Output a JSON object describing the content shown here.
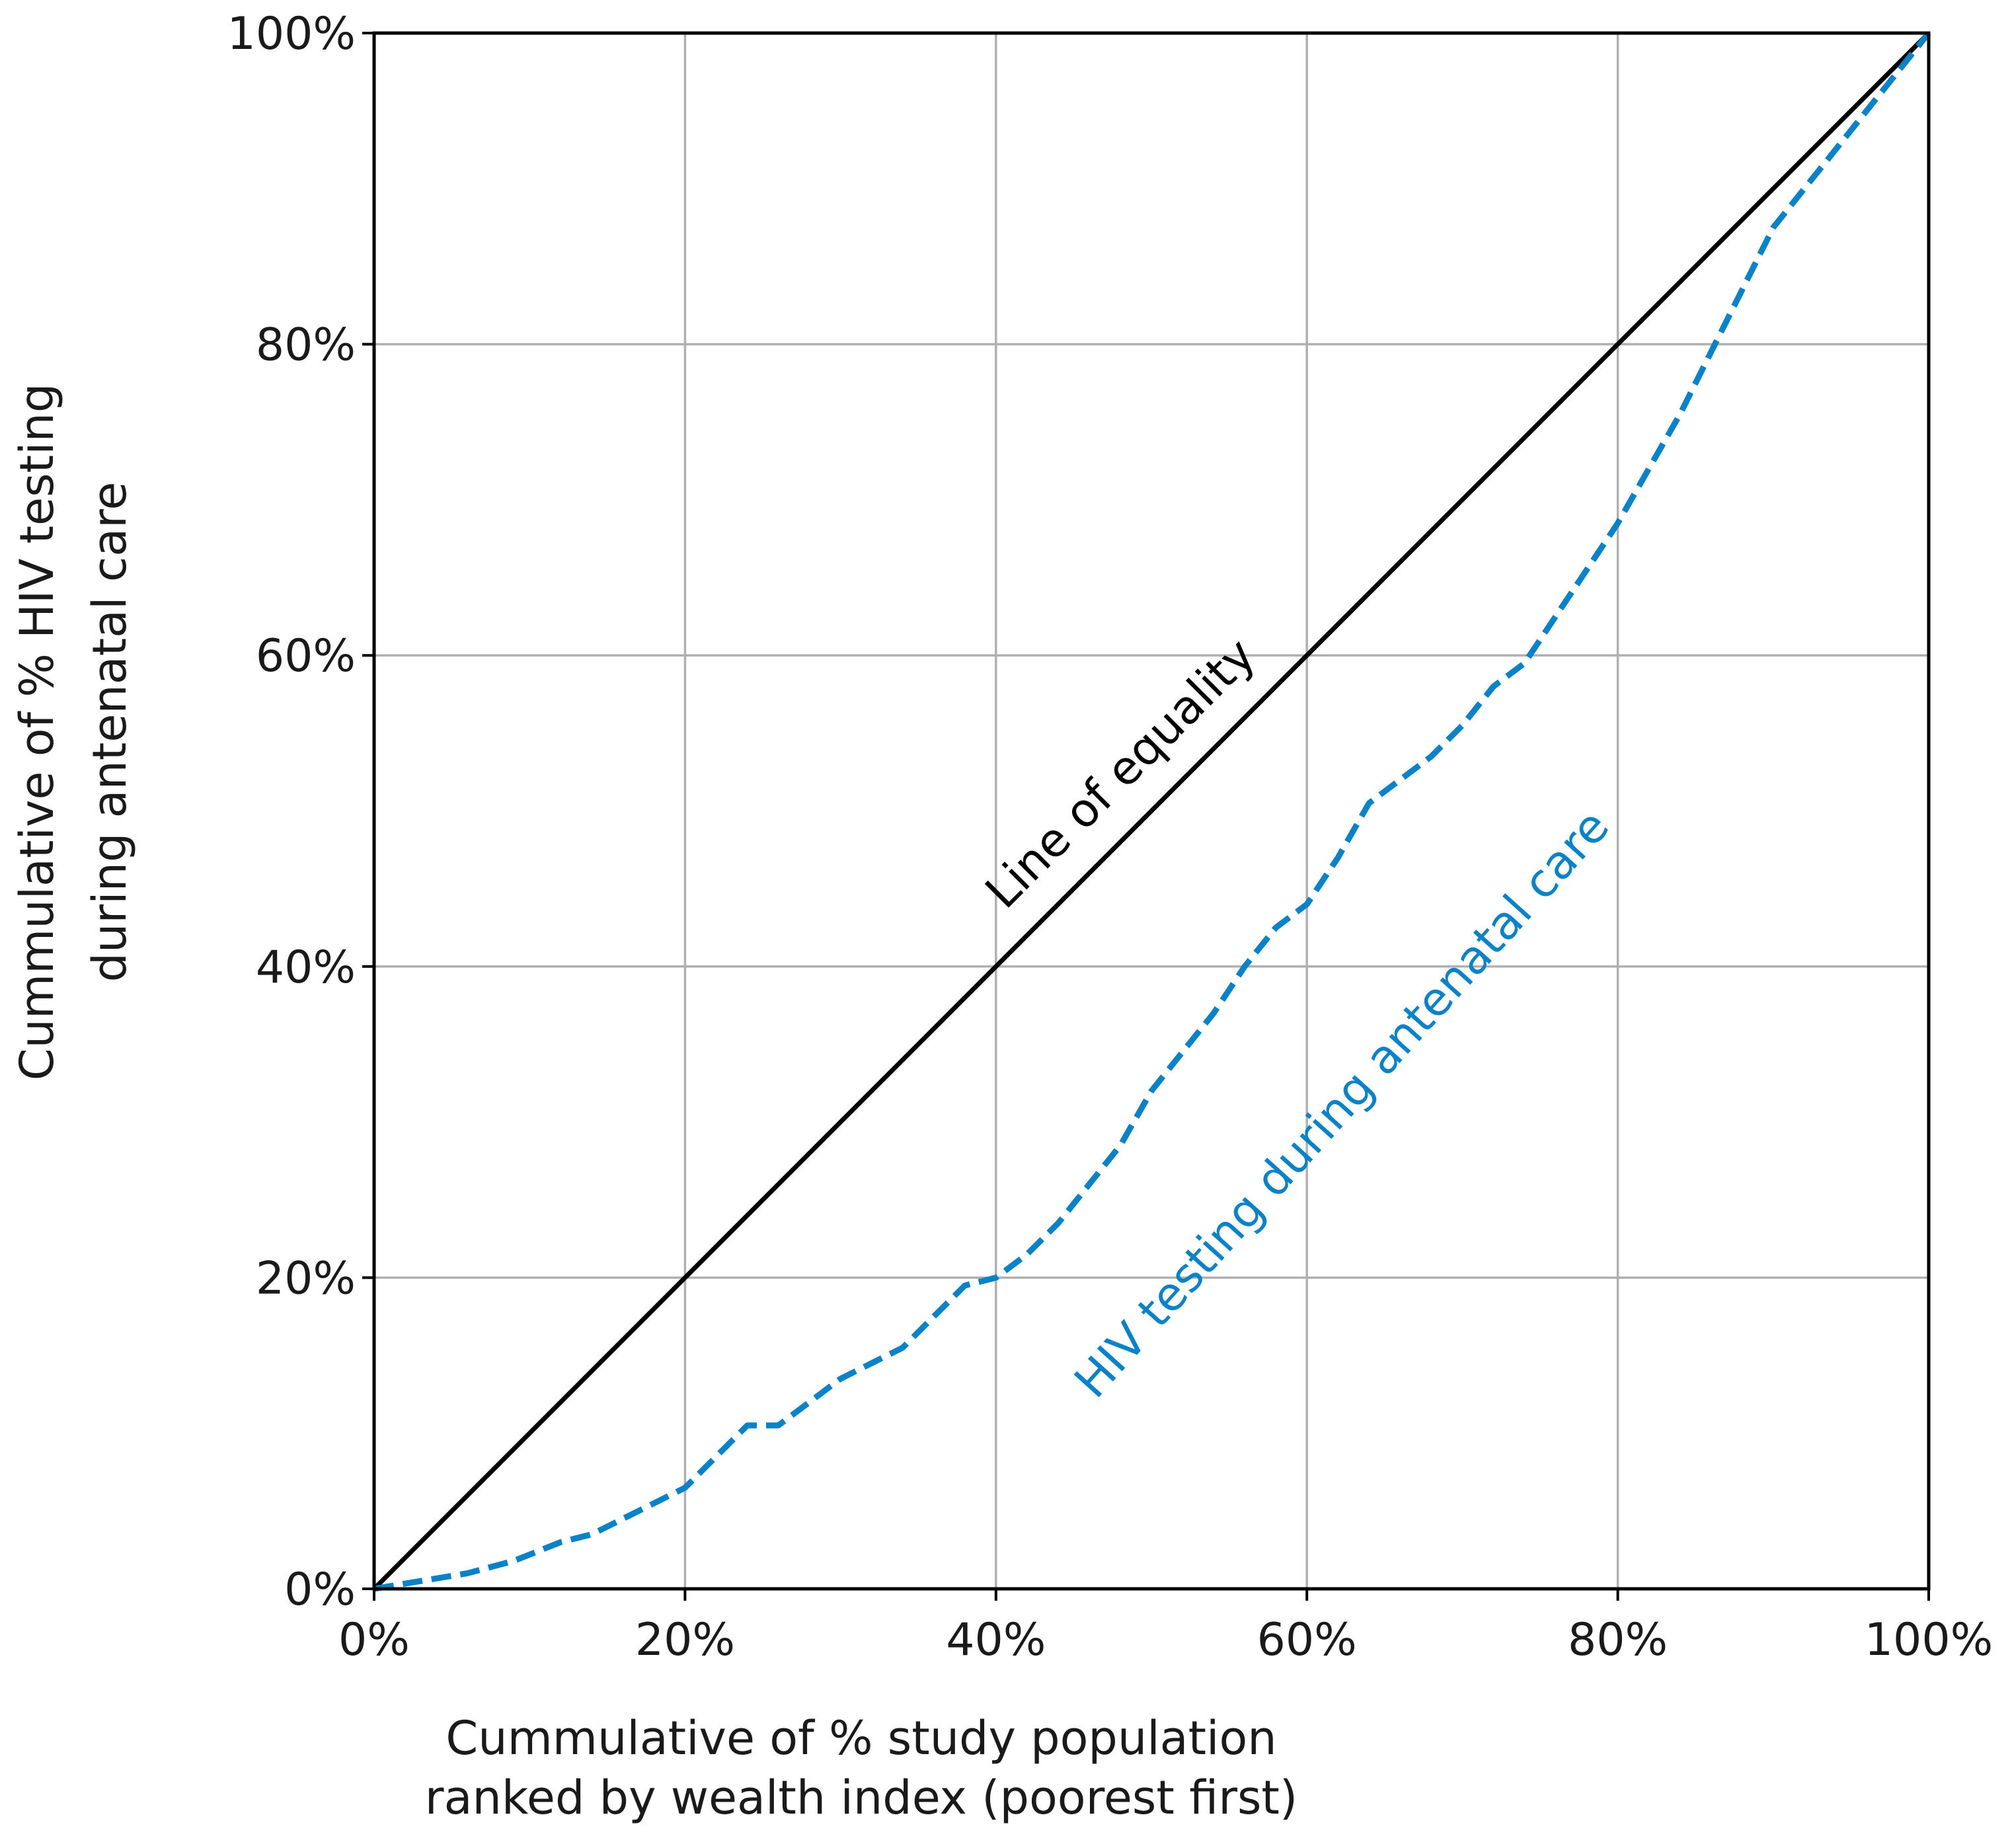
{
  "chart_data": {
    "type": "line",
    "title": "",
    "xlabel": [
      "Cummulative of % study population",
      "ranked by wealth index (poorest first)"
    ],
    "ylabel": [
      "Cummulative of % HIV testing",
      "during antenatal care"
    ],
    "xlim": [
      0,
      100
    ],
    "ylim": [
      0,
      100
    ],
    "x_ticks": [
      0,
      20,
      40,
      60,
      80,
      100
    ],
    "y_ticks": [
      0,
      20,
      40,
      60,
      80,
      100
    ],
    "x_tick_labels": [
      "0%",
      "20%",
      "40%",
      "60%",
      "80%",
      "100%"
    ],
    "y_tick_labels": [
      "0%",
      "20%",
      "40%",
      "60%",
      "80%",
      "100%"
    ],
    "grid": true,
    "colors": {
      "equality": "#000000",
      "curve": "#0a82c8",
      "grid": "#b0b0b0"
    },
    "series": [
      {
        "name": "Line of equality",
        "style": "solid",
        "x": [
          0,
          100
        ],
        "y": [
          0,
          100
        ]
      },
      {
        "name": "HIV testing during antenatal care",
        "style": "dashed",
        "x": [
          0,
          3,
          6,
          9,
          12,
          14,
          16,
          18,
          20,
          22,
          24,
          26,
          28,
          30,
          32,
          34,
          36,
          38,
          40,
          42,
          44,
          46,
          48,
          50,
          52,
          54,
          56,
          58,
          60,
          62,
          64,
          66,
          68,
          70,
          72,
          74,
          76,
          78,
          80,
          82,
          84,
          86,
          88,
          90,
          92,
          94,
          96,
          98,
          100
        ],
        "y": [
          0,
          0.5,
          1,
          1.8,
          3,
          3.5,
          4.5,
          5.5,
          6.5,
          8.5,
          10.5,
          10.5,
          12,
          13.5,
          14.5,
          15.5,
          17.5,
          19.5,
          20,
          21.5,
          23.5,
          26,
          28.5,
          32,
          34.5,
          37,
          40,
          42.5,
          44,
          47,
          50.5,
          52,
          53.5,
          55.5,
          58,
          59.5,
          62.5,
          65.5,
          68.5,
          72,
          75.5,
          79.5,
          83.5,
          87.5,
          90,
          92.5,
          95,
          97.5,
          100
        ]
      }
    ],
    "annotations": {
      "equality_label": "Line of equality",
      "curve_label": "HIV testing during antenatal care"
    }
  }
}
